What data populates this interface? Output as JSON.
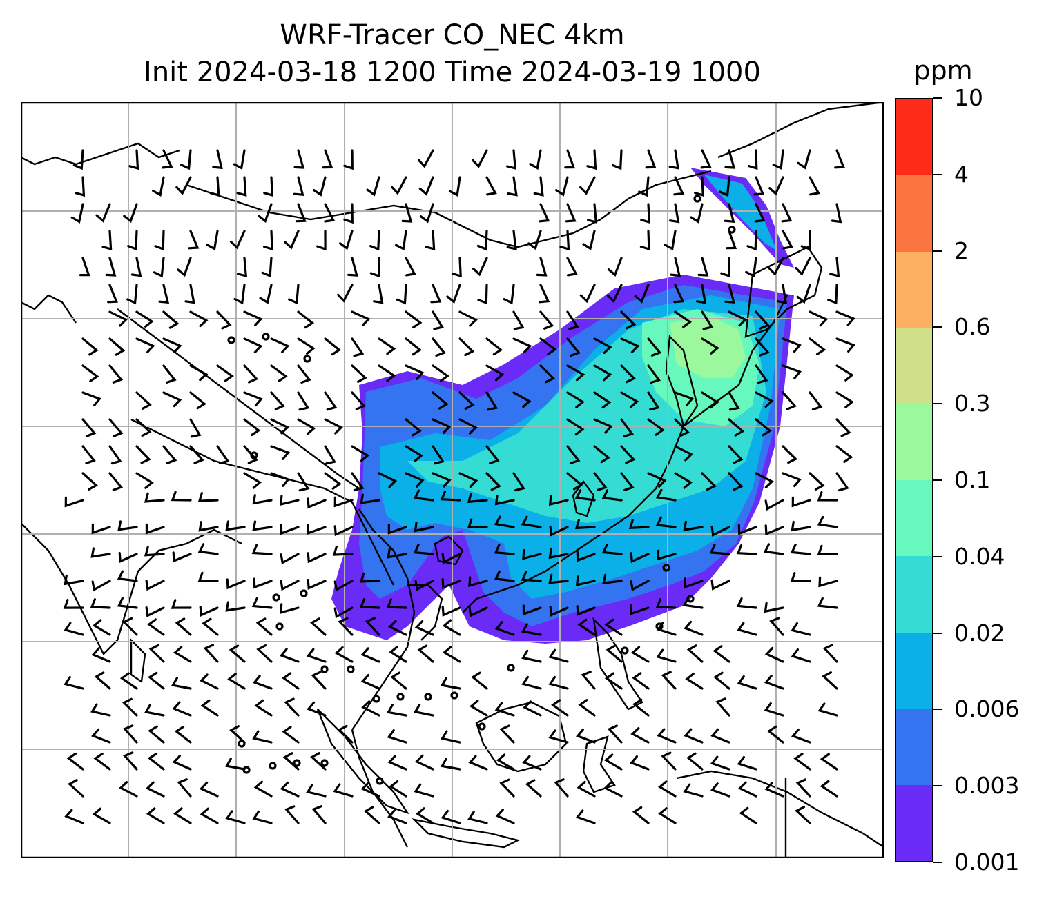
{
  "title": {
    "line1": "WRF-Tracer CO_NEC 4km",
    "line2": "Init 2024-03-18 1200 Time 2024-03-19 1000"
  },
  "colorbar": {
    "unit": "ppm",
    "levels": [
      "0.001",
      "0.003",
      "0.006",
      "0.02",
      "0.04",
      "0.1",
      "0.3",
      "0.6",
      "2",
      "4",
      "10"
    ],
    "colors": [
      "#6a2bf7",
      "#3474f0",
      "#0cb0e8",
      "#34dcd4",
      "#66f8bc",
      "#9cf89c",
      "#d0e088",
      "#fcb060",
      "#fc7440",
      "#fc2c18"
    ]
  },
  "map": {
    "variable": "CO_NEC tracer concentration",
    "grid": "on",
    "features": [
      "coastlines",
      "country borders",
      "wind barbs"
    ]
  }
}
